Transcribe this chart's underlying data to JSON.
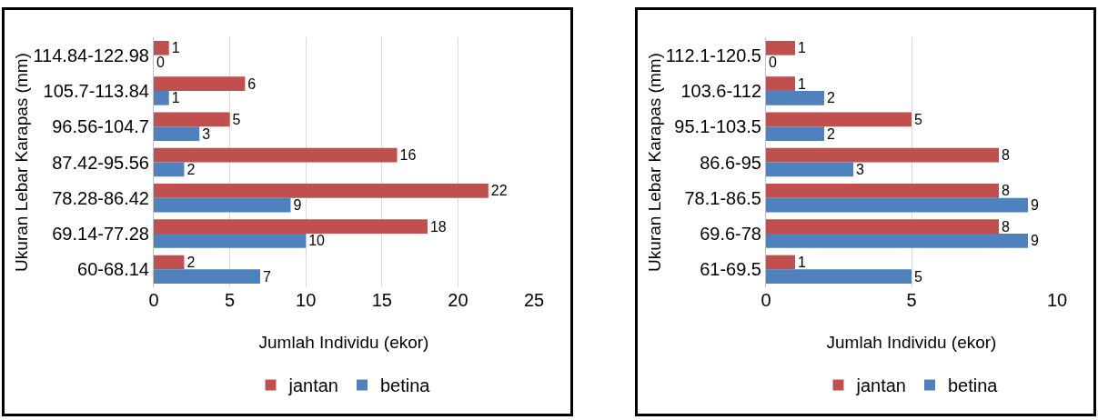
{
  "chart_data": [
    {
      "type": "bar",
      "orientation": "horizontal",
      "categories": [
        "114.84-122.98",
        "105.7-113.84",
        "96.56-104.7",
        "87.42-95.56",
        "78.28-86.42",
        "69.14-77.28",
        "60-68.14"
      ],
      "series": [
        {
          "name": "jantan",
          "color": "#c0504d",
          "values": [
            1,
            6,
            5,
            16,
            22,
            18,
            2
          ]
        },
        {
          "name": "betina",
          "color": "#4f81bd",
          "values": [
            0,
            1,
            3,
            2,
            9,
            10,
            7
          ]
        }
      ],
      "xlim": [
        0,
        25
      ],
      "xticks": [
        0,
        5,
        10,
        15,
        20,
        25
      ],
      "xlabel": "Jumlah Individu (ekor)",
      "ylabel": "Ukuran Lebar Karapas (mm)",
      "grid": "x",
      "legend": "bottom",
      "data_labels": true
    },
    {
      "type": "bar",
      "orientation": "horizontal",
      "categories": [
        "112.1-120.5",
        "103.6-112",
        "95.1-103.5",
        "86.6-95",
        "78.1-86.5",
        "69.6-78",
        "61-69.5"
      ],
      "series": [
        {
          "name": "jantan",
          "color": "#c0504d",
          "values": [
            1,
            1,
            5,
            8,
            8,
            8,
            1
          ]
        },
        {
          "name": "betina",
          "color": "#4f81bd",
          "values": [
            0,
            2,
            2,
            3,
            9,
            9,
            5
          ]
        }
      ],
      "xlim": [
        0,
        10
      ],
      "xticks": [
        0,
        5,
        10
      ],
      "xlabel": "Jumlah Individu (ekor)",
      "ylabel": "Ukuran Lebar Karapas (mm)",
      "grid": "x",
      "legend": "bottom",
      "data_labels": true
    }
  ]
}
